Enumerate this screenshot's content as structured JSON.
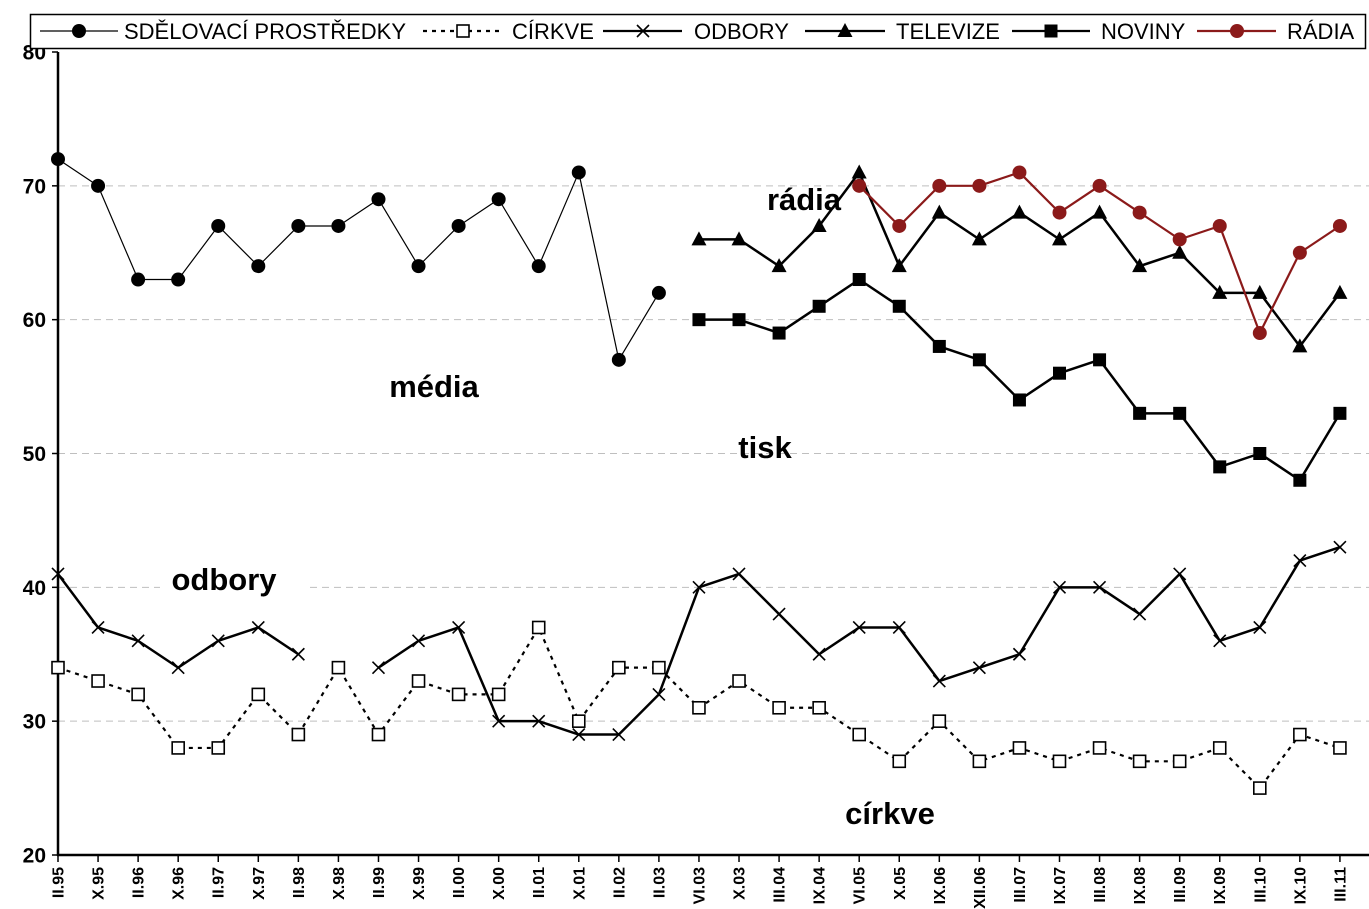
{
  "chart_data": {
    "type": "line",
    "categories": [
      "II.95",
      "X.95",
      "II.96",
      "X.96",
      "II.97",
      "X.97",
      "II.98",
      "X.98",
      "II.99",
      "X.99",
      "II.00",
      "X.00",
      "II.01",
      "X.01",
      "II.02",
      "II.03",
      "VI.03",
      "X.03",
      "III.04",
      "IX.04",
      "VI.05",
      "X.05",
      "IX.06",
      "XII.06",
      "III.07",
      "IX.07",
      "III.08",
      "IX.08",
      "III.09",
      "IX.09",
      "III.10",
      "IX.10",
      "III.11"
    ],
    "ylim": [
      20,
      80
    ],
    "yticks": [
      20,
      30,
      40,
      50,
      60,
      70,
      80
    ],
    "grid": true,
    "legend": "top",
    "series": [
      {
        "name": "SDĚLOVACÍ PROSTŘEDKY",
        "color": "#000000",
        "marker": "filled-circle",
        "values": [
          72,
          70,
          63,
          63,
          67,
          64,
          67,
          67,
          69,
          64,
          67,
          69,
          64,
          71,
          57,
          62,
          null,
          null,
          null,
          null,
          null,
          null,
          null,
          null,
          null,
          null,
          null,
          null,
          null,
          null,
          null,
          null,
          null
        ]
      },
      {
        "name": "CÍRKVE",
        "color": "#000000",
        "marker": "open-square",
        "values": [
          34,
          33,
          32,
          28,
          28,
          32,
          29,
          34,
          29,
          33,
          32,
          32,
          37,
          30,
          34,
          34,
          31,
          33,
          31,
          31,
          29,
          27,
          30,
          27,
          28,
          27,
          28,
          27,
          27,
          28,
          25,
          29,
          28
        ]
      },
      {
        "name": "ODBORY",
        "color": "#000000",
        "marker": "x-cross",
        "values": [
          41,
          37,
          36,
          34,
          36,
          37,
          35,
          null,
          34,
          36,
          37,
          30,
          30,
          29,
          29,
          32,
          40,
          41,
          38,
          35,
          37,
          37,
          33,
          34,
          35,
          40,
          40,
          38,
          41,
          36,
          37,
          42,
          43
        ]
      },
      {
        "name": "TELEVIZE",
        "color": "#000000",
        "marker": "filled-triangle",
        "values": [
          null,
          null,
          null,
          null,
          null,
          null,
          null,
          null,
          null,
          null,
          null,
          null,
          null,
          null,
          null,
          null,
          66,
          66,
          64,
          67,
          71,
          64,
          68,
          66,
          68,
          66,
          68,
          64,
          65,
          62,
          62,
          58,
          62
        ]
      },
      {
        "name": "NOVINY",
        "color": "#000000",
        "marker": "filled-square",
        "values": [
          null,
          null,
          null,
          null,
          null,
          null,
          null,
          null,
          null,
          null,
          null,
          null,
          null,
          null,
          null,
          null,
          60,
          60,
          59,
          61,
          63,
          61,
          58,
          57,
          54,
          56,
          57,
          53,
          53,
          49,
          50,
          48,
          53
        ]
      },
      {
        "name": "RÁDIA",
        "color": "#8b1a1a",
        "marker": "filled-circle",
        "values": [
          null,
          null,
          null,
          null,
          null,
          null,
          null,
          null,
          null,
          null,
          null,
          null,
          null,
          null,
          null,
          null,
          null,
          null,
          null,
          null,
          70,
          67,
          70,
          70,
          71,
          68,
          70,
          68,
          66,
          67,
          59,
          65,
          67
        ]
      }
    ],
    "annotations": [
      "rádia",
      "média",
      "tisk",
      "odbory",
      "církve"
    ]
  }
}
